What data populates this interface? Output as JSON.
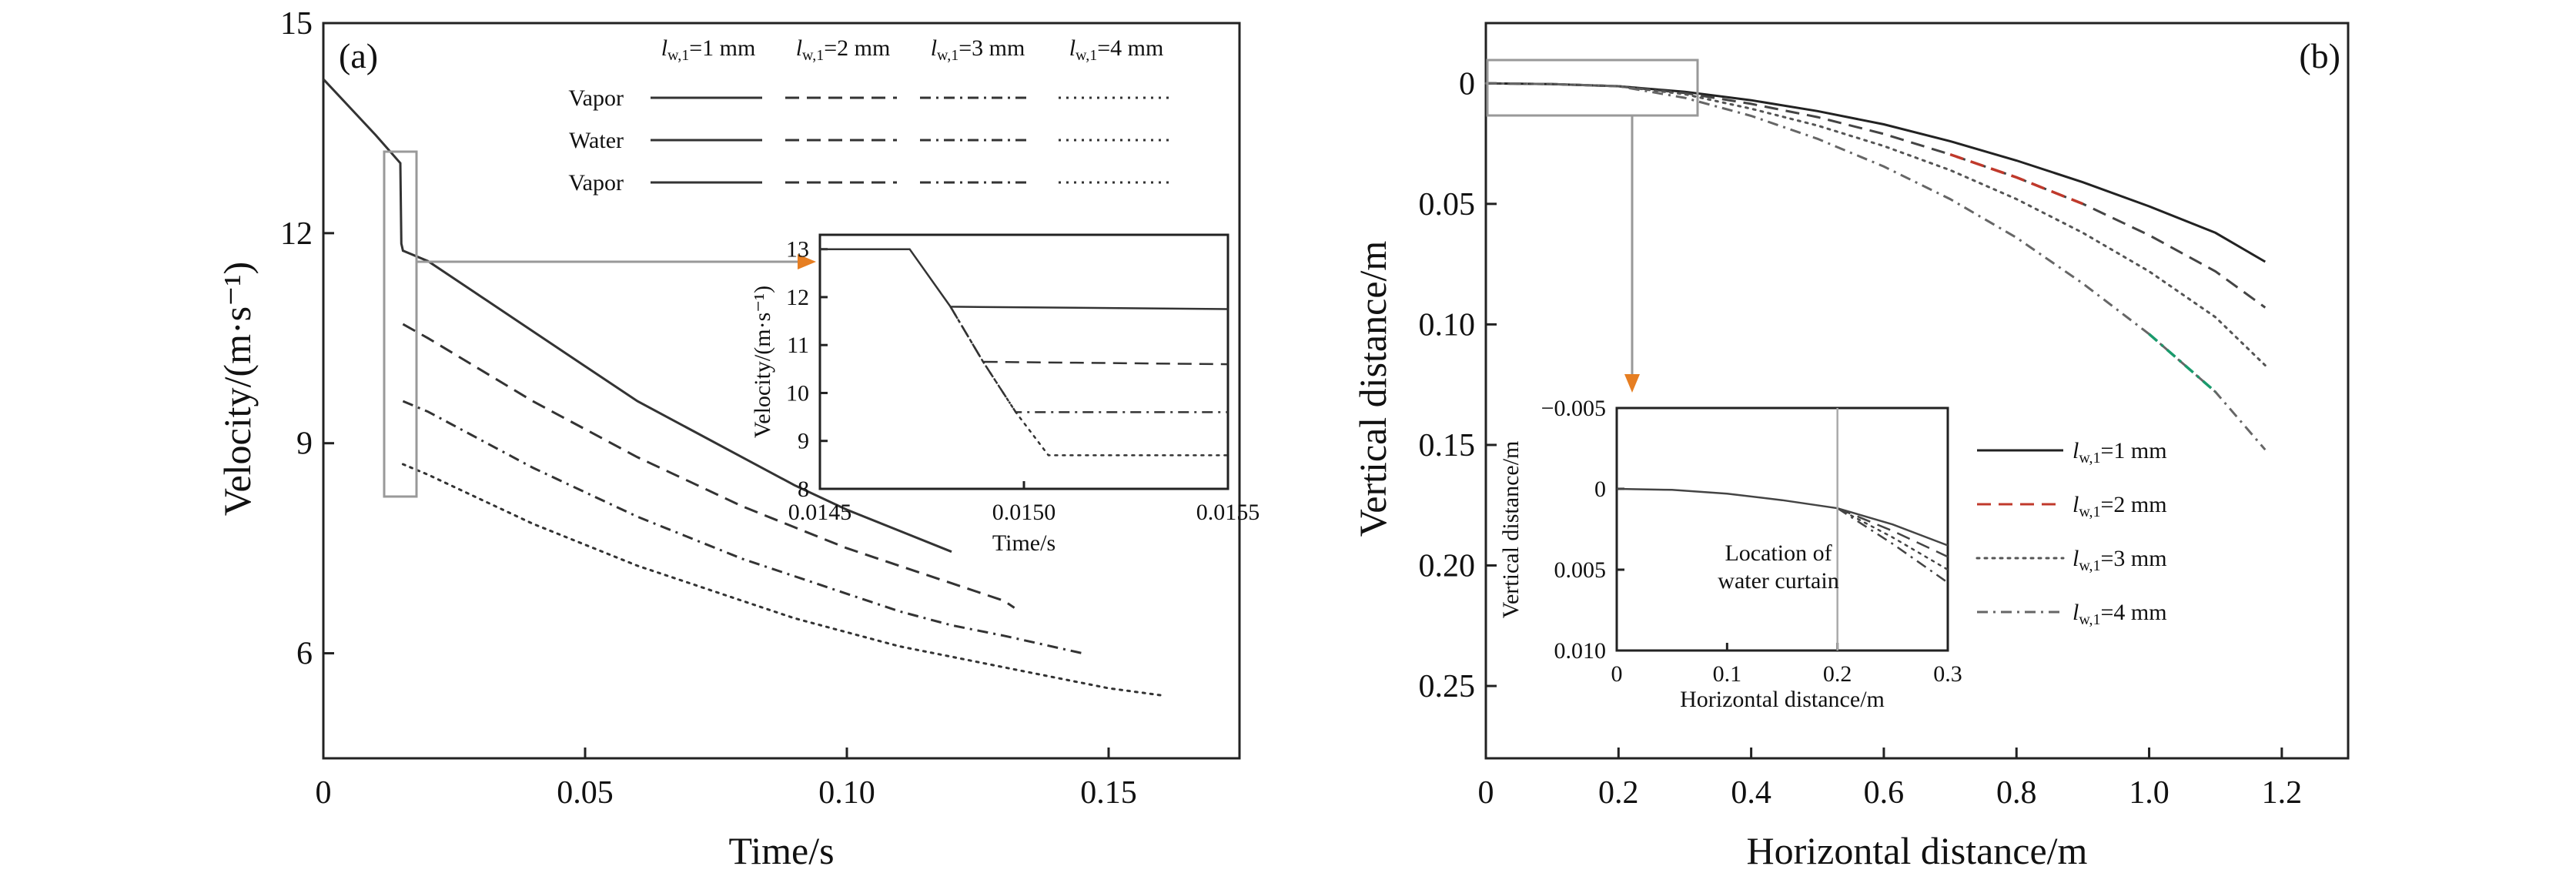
{
  "chart_data": [
    {
      "type": "line",
      "panel_label": "(a)",
      "xlabel": "Time/s",
      "ylabel": "Velocity/(m·s⁻¹)",
      "xlim": [
        0,
        0.175
      ],
      "ylim": [
        4.5,
        15
      ],
      "xticks": [
        0,
        0.05,
        0.1,
        0.15
      ],
      "xtick_labels": [
        "0",
        "0.05",
        "0.10",
        "0.15"
      ],
      "yticks": [
        6,
        9,
        12,
        15
      ],
      "ytick_labels": [
        "6",
        "9",
        "12",
        "15"
      ],
      "legend": {
        "column_headers": [
          "lw,1=1 mm",
          "lw,1=2 mm",
          "lw,1=3 mm",
          "lw,1=4 mm"
        ],
        "row_labels": [
          "Vapor",
          "Water",
          "Vapor"
        ]
      },
      "series": [
        {
          "name": "lw,1=1 mm",
          "style": "solid",
          "color": "#333333",
          "x": [
            0,
            0.005,
            0.01,
            0.0147,
            0.0149,
            0.0152,
            0.02,
            0.03,
            0.04,
            0.05,
            0.06,
            0.07,
            0.08,
            0.09,
            0.1,
            0.11,
            0.12
          ],
          "y": [
            14.2,
            13.8,
            13.4,
            13.0,
            11.85,
            11.75,
            11.6,
            11.1,
            10.6,
            10.1,
            9.6,
            9.2,
            8.8,
            8.4,
            8.05,
            7.75,
            7.45
          ]
        },
        {
          "name": "lw,1=2 mm",
          "style": "dashed",
          "color": "#333333",
          "x": [
            0.0152,
            0.02,
            0.03,
            0.04,
            0.05,
            0.06,
            0.07,
            0.08,
            0.09,
            0.1,
            0.11,
            0.12,
            0.13,
            0.132
          ],
          "y": [
            10.7,
            10.5,
            10.05,
            9.6,
            9.2,
            8.8,
            8.45,
            8.1,
            7.8,
            7.5,
            7.25,
            7.0,
            6.75,
            6.65
          ]
        },
        {
          "name": "lw,1=3 mm",
          "style": "dashdot",
          "color": "#333333",
          "x": [
            0.0152,
            0.02,
            0.03,
            0.04,
            0.05,
            0.06,
            0.07,
            0.08,
            0.09,
            0.1,
            0.11,
            0.12,
            0.13,
            0.145
          ],
          "y": [
            9.6,
            9.45,
            9.05,
            8.65,
            8.3,
            7.95,
            7.65,
            7.35,
            7.1,
            6.85,
            6.6,
            6.4,
            6.25,
            6.0
          ]
        },
        {
          "name": "lw,1=4 mm",
          "style": "dotted",
          "color": "#333333",
          "x": [
            0.0152,
            0.02,
            0.03,
            0.04,
            0.05,
            0.06,
            0.07,
            0.08,
            0.09,
            0.1,
            0.11,
            0.12,
            0.13,
            0.14,
            0.15,
            0.16
          ],
          "y": [
            8.7,
            8.55,
            8.2,
            7.85,
            7.55,
            7.25,
            7.0,
            6.75,
            6.5,
            6.3,
            6.1,
            5.95,
            5.8,
            5.65,
            5.5,
            5.4
          ]
        }
      ],
      "inset": {
        "xlabel": "Time/s",
        "ylabel": "Velocity/(m·s⁻¹)",
        "xlim": [
          0.0145,
          0.0155
        ],
        "ylim": [
          8,
          13.3
        ],
        "xticks": [
          0.0145,
          0.015,
          0.0155
        ],
        "xtick_labels": [
          "0.0145",
          "0.0150",
          "0.0155"
        ],
        "yticks": [
          8,
          9,
          10,
          11,
          12,
          13
        ],
        "ytick_labels": [
          "8",
          "9",
          "10",
          "11",
          "12",
          "13"
        ],
        "series": [
          {
            "name": "lw,1=1 mm",
            "style": "solid",
            "x": [
              0.0145,
              0.01472,
              0.01482,
              0.0155
            ],
            "y": [
              13.0,
              13.0,
              11.8,
              11.75
            ]
          },
          {
            "name": "lw,1=2 mm",
            "style": "dashed",
            "x": [
              0.01482,
              0.0149,
              0.0155
            ],
            "y": [
              11.8,
              10.65,
              10.6
            ]
          },
          {
            "name": "lw,1=3 mm",
            "style": "dashdot",
            "x": [
              0.01482,
              0.0149,
              0.01498,
              0.0155
            ],
            "y": [
              11.8,
              10.65,
              9.6,
              9.6
            ]
          },
          {
            "name": "lw,1=4 mm",
            "style": "dotted",
            "x": [
              0.01482,
              0.0149,
              0.01498,
              0.01506,
              0.0155
            ],
            "y": [
              11.8,
              10.65,
              9.6,
              8.7,
              8.7
            ]
          }
        ]
      }
    },
    {
      "type": "line",
      "panel_label": "(b)",
      "xlabel": "Horizontal distance/m",
      "ylabel": "Vertical distance/m",
      "xlim": [
        0,
        1.3
      ],
      "ylim": [
        -0.025,
        0.28
      ],
      "y_inverted": true,
      "xticks": [
        0,
        0.2,
        0.4,
        0.6,
        0.8,
        1.0,
        1.2
      ],
      "xtick_labels": [
        "0",
        "0.2",
        "0.4",
        "0.6",
        "0.8",
        "1.0",
        "1.2"
      ],
      "yticks": [
        0,
        0.05,
        0.1,
        0.15,
        0.2,
        0.25
      ],
      "ytick_labels": [
        "0",
        "0.05",
        "0.10",
        "0.15",
        "0.20",
        "0.25"
      ],
      "legend": {
        "entries": [
          "lw,1=1 mm",
          "lw,1=2 mm",
          "lw,1=3 mm",
          "lw,1=4 mm"
        ],
        "placement": "right"
      },
      "series": [
        {
          "name": "lw,1=1 mm",
          "style": "solid",
          "color": "#222222",
          "x": [
            0,
            0.1,
            0.2,
            0.3,
            0.4,
            0.5,
            0.6,
            0.7,
            0.8,
            0.9,
            1.0,
            1.1,
            1.175
          ],
          "y": [
            0,
            0.0003,
            0.0012,
            0.0035,
            0.007,
            0.0115,
            0.017,
            0.024,
            0.032,
            0.041,
            0.051,
            0.062,
            0.074
          ]
        },
        {
          "name": "lw,1=2 mm",
          "style": "dashed",
          "color": "#444444",
          "accent": "#c0392b",
          "x": [
            0,
            0.1,
            0.2,
            0.3,
            0.4,
            0.5,
            0.6,
            0.7,
            0.8,
            0.9,
            1.0,
            1.1,
            1.175
          ],
          "y": [
            0,
            0.0003,
            0.0012,
            0.004,
            0.0085,
            0.014,
            0.021,
            0.0295,
            0.039,
            0.05,
            0.063,
            0.078,
            0.093
          ]
        },
        {
          "name": "lw,1=3 mm",
          "style": "dotted",
          "color": "#555555",
          "x": [
            0,
            0.1,
            0.2,
            0.3,
            0.4,
            0.5,
            0.6,
            0.7,
            0.8,
            0.9,
            1.0,
            1.1,
            1.175
          ],
          "y": [
            0,
            0.0003,
            0.0012,
            0.0045,
            0.0105,
            0.0175,
            0.026,
            0.036,
            0.048,
            0.062,
            0.078,
            0.097,
            0.117
          ]
        },
        {
          "name": "lw,1=4 mm",
          "style": "dashdot",
          "color": "#666666",
          "accent": "#1a9a6c",
          "x": [
            0,
            0.1,
            0.2,
            0.3,
            0.4,
            0.5,
            0.6,
            0.7,
            0.8,
            0.9,
            1.0,
            1.1,
            1.175
          ],
          "y": [
            0,
            0.0003,
            0.0012,
            0.006,
            0.0135,
            0.023,
            0.0345,
            0.048,
            0.064,
            0.083,
            0.104,
            0.128,
            0.152
          ]
        }
      ],
      "inset": {
        "xlabel": "Horizontal distance/m",
        "ylabel": "Vertical distance/m",
        "xlim": [
          0,
          0.3
        ],
        "ylim": [
          -0.005,
          0.01
        ],
        "y_inverted": true,
        "xticks": [
          0,
          0.1,
          0.2,
          0.3
        ],
        "xtick_labels": [
          "0",
          "0.1",
          "0.2",
          "0.3"
        ],
        "yticks": [
          -0.005,
          0,
          0.005,
          0.01
        ],
        "ytick_labels": [
          "−0.005",
          "0",
          "0.005",
          "0.010"
        ],
        "annotation": "Location of water curtain",
        "annotation_x": 0.2,
        "series": [
          {
            "name": "lw,1=1 mm",
            "style": "solid",
            "x": [
              0,
              0.05,
              0.1,
              0.15,
              0.2,
              0.25,
              0.3
            ],
            "y": [
              0,
              6e-05,
              0.0003,
              0.0007,
              0.0012,
              0.0022,
              0.0035
            ]
          },
          {
            "name": "lw,1=2 mm",
            "style": "dashed",
            "x": [
              0.2,
              0.25,
              0.3
            ],
            "y": [
              0.0012,
              0.0026,
              0.0042
            ]
          },
          {
            "name": "lw,1=3 mm",
            "style": "dotted",
            "x": [
              0.2,
              0.25,
              0.3
            ],
            "y": [
              0.0012,
              0.003,
              0.005
            ]
          },
          {
            "name": "lw,1=4 mm",
            "style": "dashdot",
            "x": [
              0.2,
              0.25,
              0.3
            ],
            "y": [
              0.0012,
              0.0034,
              0.0058
            ]
          }
        ]
      }
    }
  ]
}
